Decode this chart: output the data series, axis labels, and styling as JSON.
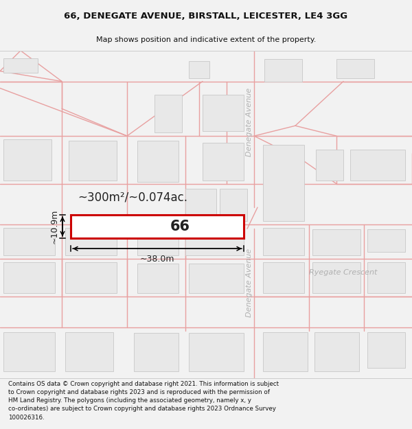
{
  "title_line1": "66, DENEGATE AVENUE, BIRSTALL, LEICESTER, LE4 3GG",
  "title_line2": "Map shows position and indicative extent of the property.",
  "footer_lines": "Contains OS data © Crown copyright and database right 2021. This information is subject\nto Crown copyright and database rights 2023 and is reproduced with the permission of\nHM Land Registry. The polygons (including the associated geometry, namely x, y\nco-ordinates) are subject to Crown copyright and database rights 2023 Ordnance Survey\n100026316.",
  "bg_color": "#f2f2f2",
  "map_bg": "#ffffff",
  "road_color": "#e8a0a0",
  "building_fill": "#e8e8e8",
  "building_line": "#c8c8c8",
  "subject_fill": "#ffffff",
  "subject_line": "#cc0000",
  "label_66": "66",
  "area_text": "~300m²/~0.074ac.",
  "width_text": "~38.0m",
  "height_text": "~10.9m",
  "street_label_top": "Denegate Avenue",
  "street_label_bottom": "Denegate Avenue",
  "crescent_label": "Ryegate Crescent"
}
